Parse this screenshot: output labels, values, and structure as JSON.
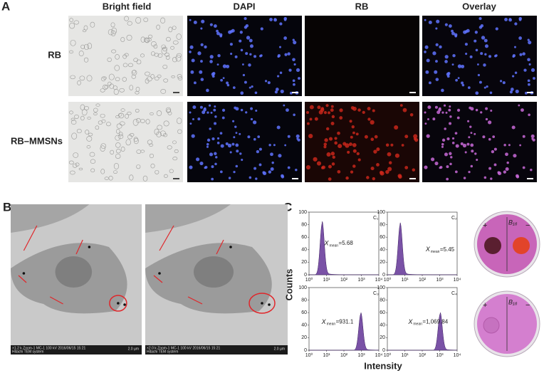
{
  "panel_a": {
    "letter": "A",
    "columns": [
      "Bright field",
      "DAPI",
      "RB",
      "Overlay"
    ],
    "rows": [
      "RB",
      "RB–MMSNs"
    ]
  },
  "panel_b": {
    "letter": "B",
    "images": [
      {
        "caption_line1": "×1.2 k  Zoom-1  MC-1  100 kV  2016/06/15  15:21",
        "caption_line2": "Hitachi TEM system",
        "scale": "2.0 µm"
      },
      {
        "caption_line1": "×2.0 k  Zoom-1  MC-1  100 kV  2016/06/15  15:21",
        "caption_line2": "Hitachi TEM system",
        "scale": "2.0 µm"
      }
    ]
  },
  "panel_c": {
    "letter": "C",
    "y_label": "Counts",
    "x_label": "Intensity",
    "x_log": true,
    "xlim": [
      1,
      10000
    ],
    "xticks": [
      {
        "value": 1,
        "label": "10⁰"
      },
      {
        "value": 10,
        "label": "10¹"
      },
      {
        "value": 100,
        "label": "10²"
      },
      {
        "value": 1000,
        "label": "10³"
      },
      {
        "value": 10000,
        "label": "10⁴"
      }
    ],
    "ylim": [
      0,
      100
    ],
    "yticks": [
      0,
      20,
      40,
      60,
      80,
      100
    ],
    "xmean_symbol": "X",
    "xmean_subscript": "mean",
    "color": "#7a52a6",
    "histograms": [
      {
        "name": "C₁",
        "xmean": {
          "value": 5.68,
          "label": "=5.68"
        },
        "peak": 82
      },
      {
        "name": "C₂",
        "xmean": {
          "value": 5.45,
          "label": "=5.45"
        },
        "peak": 80
      },
      {
        "name": "C₃",
        "xmean": {
          "value": 931.1,
          "label": "=931.1"
        },
        "peak": 58
      },
      {
        "name": "C₄",
        "xmean": {
          "value": 1069.84,
          "label": "=1,069.84"
        },
        "peak": 58
      }
    ],
    "dishes": [
      {
        "label": "B₁₆",
        "plus": "+",
        "minus": "−"
      },
      {
        "label": "B₁₆",
        "plus": "+",
        "minus": "−"
      }
    ]
  }
}
